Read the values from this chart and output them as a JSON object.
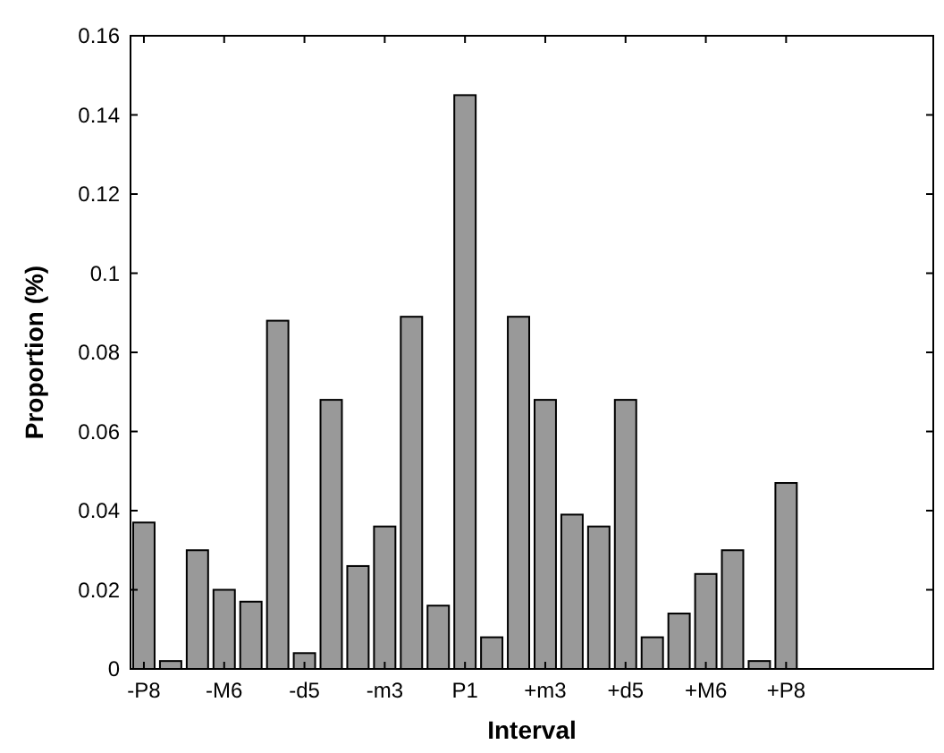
{
  "chart_data": {
    "type": "bar",
    "xlabel": "Interval",
    "ylabel": "Proportion (%)",
    "categories": [
      "-P8",
      null,
      null,
      "-M6",
      null,
      null,
      "-d5",
      null,
      null,
      "-m3",
      null,
      null,
      "P1",
      null,
      null,
      "+m3",
      null,
      null,
      "+d5",
      null,
      null,
      "+M6",
      null,
      null,
      "+P8"
    ],
    "values": [
      0.037,
      0.002,
      0.03,
      0.02,
      0.017,
      0.088,
      0.004,
      0.068,
      0.026,
      0.036,
      0.089,
      0.016,
      0.145,
      0.008,
      0.089,
      0.068,
      0.039,
      0.036,
      0.068,
      0.008,
      0.014,
      0.024,
      0.03,
      0.002,
      0.047
    ],
    "color": "#999999",
    "ylim": [
      0,
      0.16
    ],
    "yticks": [
      0,
      0.02,
      0.04,
      0.06,
      0.08,
      {
        "value": 0.1,
        "label": "0.1"
      },
      0.12,
      0.14,
      0.16
    ],
    "grid": false
  }
}
